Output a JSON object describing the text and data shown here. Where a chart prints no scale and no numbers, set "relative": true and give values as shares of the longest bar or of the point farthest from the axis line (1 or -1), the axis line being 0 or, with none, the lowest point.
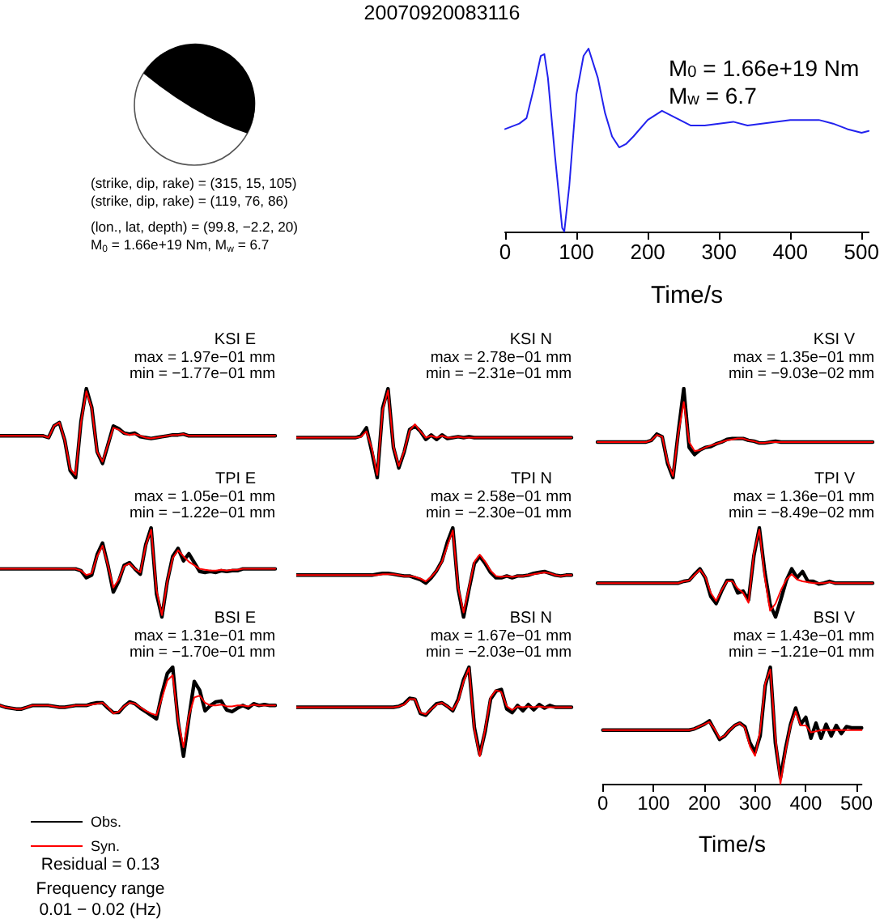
{
  "chart_data": [
    {
      "type": "other",
      "title": "20070920083116",
      "annotations": [
        "(strike, dip, rake) = (315, 15, 105)",
        "(strike, dip, rake) = (119, 76, 86)",
        "(lon., lat, depth) = (99.8, −2.2, 20)",
        "M$_{0}$ = 1.66e+19 Nm, M$_{w}$ = 6.7",
        "Residual = 0.13",
        "Frequency range",
        "0.01 − 0.02 (Hz)"
      ]
    },
    {
      "type": "line",
      "relative": true,
      "marker": "none",
      "xlabel": "Time/s",
      "xlim": [
        0,
        510
      ],
      "xticks": [
        0,
        100,
        200,
        300,
        400,
        500
      ],
      "annotations": [
        "M$_{0}$ = 1.66e+19 Nm",
        "M$_{w}$ = 6.7"
      ],
      "x": [
        0,
        20,
        30,
        40,
        50,
        55,
        60,
        70,
        80,
        83,
        90,
        100,
        110,
        117,
        130,
        140,
        150,
        160,
        170,
        180,
        200,
        220,
        240,
        260,
        280,
        300,
        320,
        340,
        360,
        380,
        400,
        440,
        460,
        480,
        500,
        510
      ],
      "series": [
        {
          "color": "#2222ee",
          "values": [
            0.56,
            0.59,
            0.62,
            0.78,
            0.96,
            0.97,
            0.84,
            0.41,
            0.02,
            0,
            0.25,
            0.75,
            0.96,
            1,
            0.84,
            0.65,
            0.52,
            0.46,
            0.48,
            0.52,
            0.61,
            0.66,
            0.62,
            0.58,
            0.58,
            0.59,
            0.6,
            0.58,
            0.59,
            0.6,
            0.61,
            0.61,
            0.59,
            0.56,
            0.54,
            0.55
          ]
        }
      ]
    },
    {
      "type": "line",
      "relative": true,
      "marker": "none",
      "title": "KSI E",
      "annotations": [
        "max = 1.97e−01 mm",
        "min = −1.77e−01 mm"
      ],
      "categories": [
        null,
        null,
        null,
        null,
        null,
        null,
        null,
        null,
        null,
        null,
        null,
        null,
        null,
        null,
        null,
        null,
        null,
        null,
        null,
        null,
        null,
        null,
        null,
        null,
        null,
        null,
        null,
        null,
        null,
        null,
        null,
        null,
        null,
        null,
        null,
        null,
        null,
        null,
        null,
        null,
        null,
        null,
        null,
        null,
        null,
        null,
        null,
        null,
        null,
        null,
        null,
        null
      ],
      "series": [
        {
          "color": "#000000",
          "values": [
            0.47,
            0.47,
            0.47,
            0.47,
            0.47,
            0.47,
            0.47,
            0.47,
            0.47,
            0.45,
            0.58,
            0.62,
            0.42,
            0.08,
            0,
            0.63,
            1,
            0.79,
            0.29,
            0.16,
            0.37,
            0.58,
            0.55,
            0.5,
            0.49,
            0.5,
            0.46,
            0.45,
            0.44,
            0.45,
            0.46,
            0.47,
            0.48,
            0.48,
            0.49,
            0.47,
            0.47,
            0.47,
            0.47,
            0.47,
            0.47,
            0.47,
            0.47,
            0.47,
            0.47,
            0.47,
            0.47,
            0.47,
            0.47,
            0.47,
            0.47,
            0.47
          ]
        },
        {
          "color": "#ff0000",
          "values": [
            0.47,
            0.47,
            0.47,
            0.47,
            0.47,
            0.47,
            0.47,
            0.47,
            0.47,
            0.45,
            0.58,
            0.62,
            0.42,
            0.1,
            0.03,
            0.62,
            0.97,
            0.78,
            0.29,
            0.18,
            0.37,
            0.56,
            0.54,
            0.5,
            0.48,
            0.49,
            0.47,
            0.45,
            0.44,
            0.45,
            0.46,
            0.47,
            0.48,
            0.48,
            0.49,
            0.47,
            0.47,
            0.47,
            0.47,
            0.47,
            0.47,
            0.47,
            0.47,
            0.47,
            0.47,
            0.47,
            0.47,
            0.47,
            0.47,
            0.47,
            0.47,
            0.47
          ]
        }
      ]
    },
    {
      "type": "line",
      "relative": true,
      "marker": "none",
      "title": "KSI N",
      "annotations": [
        "max = 2.78e−01 mm",
        "min = −2.31e−01 mm"
      ],
      "categories": [
        null,
        null,
        null,
        null,
        null,
        null,
        null,
        null,
        null,
        null,
        null,
        null,
        null,
        null,
        null,
        null,
        null,
        null,
        null,
        null,
        null,
        null,
        null,
        null,
        null,
        null,
        null,
        null,
        null,
        null,
        null,
        null,
        null,
        null,
        null,
        null,
        null,
        null,
        null,
        null,
        null,
        null,
        null,
        null,
        null,
        null,
        null,
        null,
        null,
        null,
        null,
        null
      ],
      "series": [
        {
          "color": "#000000",
          "values": [
            0.45,
            0.45,
            0.45,
            0.45,
            0.45,
            0.45,
            0.45,
            0.45,
            0.45,
            0.45,
            0.45,
            0.45,
            0.47,
            0.56,
            0.29,
            0,
            0.78,
            1,
            0.34,
            0.11,
            0.29,
            0.54,
            0.58,
            0.52,
            0.43,
            0.48,
            0.43,
            0.48,
            0.44,
            0.45,
            0.46,
            0.45,
            0.46,
            0.45,
            0.45,
            0.45,
            0.45,
            0.45,
            0.45,
            0.45,
            0.45,
            0.45,
            0.45,
            0.45,
            0.45,
            0.45,
            0.45,
            0.45,
            0.45,
            0.45,
            0.45,
            0.45
          ]
        },
        {
          "color": "#ff0000",
          "values": [
            0.45,
            0.45,
            0.45,
            0.45,
            0.45,
            0.45,
            0.45,
            0.45,
            0.45,
            0.45,
            0.45,
            0.45,
            0.46,
            0.52,
            0.33,
            0.03,
            0.76,
            0.98,
            0.35,
            0.13,
            0.3,
            0.53,
            0.6,
            0.52,
            0.45,
            0.47,
            0.45,
            0.47,
            0.45,
            0.45,
            0.46,
            0.45,
            0.45,
            0.45,
            0.45,
            0.45,
            0.45,
            0.45,
            0.45,
            0.45,
            0.45,
            0.45,
            0.45,
            0.45,
            0.45,
            0.45,
            0.45,
            0.45,
            0.45,
            0.45,
            0.45,
            0.45
          ]
        }
      ]
    },
    {
      "type": "line",
      "relative": true,
      "marker": "none",
      "title": "KSI V",
      "annotations": [
        "max = 1.35e−01 mm",
        "min = −9.03e−02 mm"
      ],
      "categories": [
        null,
        null,
        null,
        null,
        null,
        null,
        null,
        null,
        null,
        null,
        null,
        null,
        null,
        null,
        null,
        null,
        null,
        null,
        null,
        null,
        null,
        null,
        null,
        null,
        null,
        null,
        null,
        null,
        null,
        null,
        null,
        null,
        null,
        null,
        null,
        null,
        null,
        null,
        null,
        null,
        null,
        null,
        null,
        null,
        null,
        null,
        null,
        null,
        null,
        null,
        null,
        null
      ],
      "series": [
        {
          "color": "#000000",
          "values": [
            0.4,
            0.4,
            0.4,
            0.4,
            0.4,
            0.4,
            0.4,
            0.4,
            0.4,
            0.4,
            0.42,
            0.49,
            0.46,
            0.16,
            0,
            0.52,
            1,
            0.34,
            0.26,
            0.31,
            0.34,
            0.35,
            0.38,
            0.4,
            0.43,
            0.44,
            0.44,
            0.44,
            0.42,
            0.41,
            0.39,
            0.39,
            0.4,
            0.41,
            0.4,
            0.4,
            0.4,
            0.4,
            0.4,
            0.4,
            0.4,
            0.4,
            0.4,
            0.4,
            0.4,
            0.4,
            0.4,
            0.4,
            0.4,
            0.4,
            0.4,
            0.4
          ]
        },
        {
          "color": "#ff0000",
          "values": [
            0.4,
            0.4,
            0.4,
            0.4,
            0.4,
            0.4,
            0.4,
            0.4,
            0.4,
            0.4,
            0.42,
            0.48,
            0.46,
            0.18,
            0.02,
            0.5,
            0.85,
            0.4,
            0.3,
            0.31,
            0.34,
            0.36,
            0.38,
            0.4,
            0.42,
            0.43,
            0.44,
            0.44,
            0.42,
            0.41,
            0.39,
            0.39,
            0.4,
            0.4,
            0.4,
            0.4,
            0.4,
            0.4,
            0.4,
            0.4,
            0.4,
            0.4,
            0.4,
            0.4,
            0.4,
            0.4,
            0.4,
            0.4,
            0.4,
            0.4,
            0.4,
            0.4
          ]
        }
      ]
    },
    {
      "type": "line",
      "relative": true,
      "marker": "none",
      "title": "TPI E",
      "annotations": [
        "max = 1.05e−01 mm",
        "min = −1.22e−01 mm"
      ],
      "categories": [
        null,
        null,
        null,
        null,
        null,
        null,
        null,
        null,
        null,
        null,
        null,
        null,
        null,
        null,
        null,
        null,
        null,
        null,
        null,
        null,
        null,
        null,
        null,
        null,
        null,
        null,
        null,
        null,
        null,
        null,
        null,
        null,
        null,
        null,
        null,
        null,
        null,
        null,
        null,
        null,
        null,
        null,
        null,
        null,
        null,
        null,
        null,
        null,
        null,
        null,
        null,
        null
      ],
      "series": [
        {
          "color": "#000000",
          "values": [
            0.54,
            0.54,
            0.54,
            0.54,
            0.54,
            0.54,
            0.54,
            0.54,
            0.54,
            0.54,
            0.54,
            0.54,
            0.54,
            0.54,
            0.54,
            0.52,
            0.44,
            0.47,
            0.7,
            0.83,
            0.58,
            0.28,
            0.4,
            0.58,
            0.61,
            0.54,
            0.48,
            0.81,
            1,
            0.26,
            0,
            0.4,
            0.68,
            0.77,
            0.63,
            0.71,
            0.61,
            0.51,
            0.5,
            0.51,
            0.5,
            0.52,
            0.51,
            0.52,
            0.52,
            0.54,
            0.54,
            0.54,
            0.54,
            0.54,
            0.54,
            0.54
          ]
        },
        {
          "color": "#ff0000",
          "values": [
            0.54,
            0.54,
            0.54,
            0.54,
            0.54,
            0.54,
            0.54,
            0.54,
            0.54,
            0.54,
            0.54,
            0.54,
            0.54,
            0.54,
            0.54,
            0.52,
            0.47,
            0.49,
            0.68,
            0.8,
            0.58,
            0.33,
            0.42,
            0.57,
            0.6,
            0.54,
            0.5,
            0.8,
            0.98,
            0.3,
            0.02,
            0.4,
            0.66,
            0.75,
            0.68,
            0.62,
            0.58,
            0.54,
            0.53,
            0.52,
            0.52,
            0.53,
            0.52,
            0.53,
            0.53,
            0.54,
            0.54,
            0.54,
            0.54,
            0.54,
            0.54,
            0.54
          ]
        }
      ]
    },
    {
      "type": "line",
      "relative": true,
      "marker": "none",
      "title": "TPI N",
      "annotations": [
        "max = 2.58e−01 mm",
        "min = −2.30e−01 mm"
      ],
      "categories": [
        null,
        null,
        null,
        null,
        null,
        null,
        null,
        null,
        null,
        null,
        null,
        null,
        null,
        null,
        null,
        null,
        null,
        null,
        null,
        null,
        null,
        null,
        null,
        null,
        null,
        null,
        null,
        null,
        null,
        null,
        null,
        null,
        null,
        null,
        null,
        null,
        null,
        null,
        null,
        null,
        null,
        null,
        null,
        null,
        null,
        null,
        null,
        null,
        null,
        null,
        null,
        null
      ],
      "series": [
        {
          "color": "#000000",
          "values": [
            0.47,
            0.47,
            0.47,
            0.47,
            0.47,
            0.47,
            0.47,
            0.47,
            0.47,
            0.47,
            0.47,
            0.47,
            0.47,
            0.47,
            0.47,
            0.48,
            0.49,
            0.49,
            0.48,
            0.47,
            0.46,
            0.46,
            0.44,
            0.42,
            0.38,
            0.44,
            0.52,
            0.63,
            0.84,
            1,
            0.31,
            0,
            0.31,
            0.6,
            0.68,
            0.6,
            0.5,
            0.44,
            0.44,
            0.46,
            0.44,
            0.46,
            0.46,
            0.47,
            0.49,
            0.5,
            0.51,
            0.49,
            0.47,
            0.46,
            0.47,
            0.47
          ]
        },
        {
          "color": "#ff0000",
          "values": [
            0.47,
            0.47,
            0.47,
            0.47,
            0.47,
            0.47,
            0.47,
            0.47,
            0.47,
            0.47,
            0.47,
            0.47,
            0.47,
            0.47,
            0.47,
            0.47,
            0.48,
            0.48,
            0.48,
            0.47,
            0.46,
            0.46,
            0.45,
            0.43,
            0.4,
            0.45,
            0.52,
            0.62,
            0.8,
            0.97,
            0.33,
            0.05,
            0.33,
            0.62,
            0.7,
            0.62,
            0.52,
            0.46,
            0.45,
            0.46,
            0.45,
            0.46,
            0.46,
            0.47,
            0.48,
            0.49,
            0.5,
            0.49,
            0.47,
            0.46,
            0.47,
            0.47
          ]
        }
      ]
    },
    {
      "type": "line",
      "relative": true,
      "marker": "none",
      "title": "TPI V",
      "annotations": [
        "max = 1.36e−01 mm",
        "min = −8.49e−02 mm"
      ],
      "categories": [
        null,
        null,
        null,
        null,
        null,
        null,
        null,
        null,
        null,
        null,
        null,
        null,
        null,
        null,
        null,
        null,
        null,
        null,
        null,
        null,
        null,
        null,
        null,
        null,
        null,
        null,
        null,
        null,
        null,
        null,
        null,
        null,
        null,
        null,
        null,
        null,
        null,
        null,
        null,
        null,
        null,
        null,
        null,
        null,
        null,
        null,
        null,
        null,
        null,
        null,
        null,
        null
      ],
      "series": [
        {
          "color": "#000000",
          "values": [
            0.38,
            0.38,
            0.38,
            0.38,
            0.38,
            0.38,
            0.38,
            0.38,
            0.38,
            0.38,
            0.38,
            0.38,
            0.38,
            0.38,
            0.38,
            0.38,
            0.4,
            0.41,
            0.48,
            0.54,
            0.44,
            0.23,
            0.15,
            0.29,
            0.41,
            0.41,
            0.27,
            0.29,
            0.19,
            0.69,
            1,
            0.51,
            0.14,
            0,
            0.2,
            0.41,
            0.54,
            0.44,
            0.51,
            0.4,
            0.4,
            0.37,
            0.38,
            0.4,
            0.38,
            0.38,
            0.38,
            0.38,
            0.38,
            0.38,
            0.38,
            0.38
          ]
        },
        {
          "color": "#ff0000",
          "values": [
            0.38,
            0.38,
            0.38,
            0.38,
            0.38,
            0.38,
            0.38,
            0.38,
            0.38,
            0.38,
            0.38,
            0.38,
            0.38,
            0.38,
            0.38,
            0.38,
            0.4,
            0.41,
            0.47,
            0.53,
            0.45,
            0.27,
            0.18,
            0.3,
            0.4,
            0.4,
            0.32,
            0.27,
            0.16,
            0.72,
            0.98,
            0.45,
            0.07,
            0.15,
            0.3,
            0.42,
            0.48,
            0.42,
            0.4,
            0.39,
            0.38,
            0.38,
            0.38,
            0.39,
            0.38,
            0.38,
            0.38,
            0.38,
            0.38,
            0.38,
            0.38,
            0.38
          ]
        }
      ]
    },
    {
      "type": "line",
      "relative": true,
      "marker": "none",
      "title": "BSI E",
      "annotations": [
        "max = 1.31e−01 mm",
        "min = −1.70e−01 mm"
      ],
      "legend": "bottom left",
      "categories": [
        null,
        null,
        null,
        null,
        null,
        null,
        null,
        null,
        null,
        null,
        null,
        null,
        null,
        null,
        null,
        null,
        null,
        null,
        null,
        null,
        null,
        null,
        null,
        null,
        null,
        null,
        null,
        null,
        null,
        null,
        null,
        null,
        null,
        null,
        null,
        null,
        null,
        null,
        null,
        null,
        null,
        null,
        null,
        null,
        null,
        null,
        null,
        null,
        null,
        null,
        null,
        null
      ],
      "series": [
        {
          "name": "Obs.",
          "color": "#000000",
          "values": [
            0.57,
            0.55,
            0.54,
            0.53,
            0.53,
            0.55,
            0.57,
            0.57,
            0.57,
            0.57,
            0.56,
            0.55,
            0.55,
            0.56,
            0.57,
            0.57,
            0.57,
            0.59,
            0.6,
            0.6,
            0.54,
            0.49,
            0.49,
            0.56,
            0.61,
            0.59,
            0.54,
            0.5,
            0.46,
            0.42,
            0.7,
            0.93,
            1,
            0.39,
            0,
            0.43,
            0.84,
            0.74,
            0.51,
            0.57,
            0.61,
            0.62,
            0.52,
            0.5,
            0.54,
            0.57,
            0.54,
            0.59,
            0.57,
            0.58,
            0.57,
            0.57
          ]
        },
        {
          "name": "Syn.",
          "color": "#ff0000",
          "values": [
            0.57,
            0.55,
            0.54,
            0.53,
            0.53,
            0.55,
            0.57,
            0.57,
            0.57,
            0.57,
            0.56,
            0.55,
            0.55,
            0.56,
            0.57,
            0.57,
            0.57,
            0.58,
            0.59,
            0.6,
            0.55,
            0.48,
            0.5,
            0.56,
            0.6,
            0.59,
            0.55,
            0.51,
            0.48,
            0.46,
            0.65,
            0.85,
            0.91,
            0.4,
            0.1,
            0.45,
            0.66,
            0.68,
            0.6,
            0.57,
            0.57,
            0.58,
            0.56,
            0.56,
            0.57,
            0.57,
            0.56,
            0.58,
            0.57,
            0.57,
            0.57,
            0.57
          ]
        }
      ]
    },
    {
      "type": "line",
      "relative": true,
      "marker": "none",
      "title": "BSI N",
      "annotations": [
        "max = 1.67e−01 mm",
        "min = −2.03e−01 mm"
      ],
      "categories": [
        null,
        null,
        null,
        null,
        null,
        null,
        null,
        null,
        null,
        null,
        null,
        null,
        null,
        null,
        null,
        null,
        null,
        null,
        null,
        null,
        null,
        null,
        null,
        null,
        null,
        null,
        null,
        null,
        null,
        null,
        null,
        null,
        null,
        null,
        null,
        null,
        null,
        null,
        null,
        null,
        null,
        null,
        null,
        null,
        null,
        null,
        null,
        null,
        null,
        null,
        null,
        null
      ],
      "series": [
        {
          "color": "#000000",
          "values": [
            0.55,
            0.55,
            0.55,
            0.55,
            0.55,
            0.55,
            0.55,
            0.55,
            0.55,
            0.55,
            0.55,
            0.55,
            0.55,
            0.55,
            0.55,
            0.55,
            0.55,
            0.55,
            0.55,
            0.56,
            0.59,
            0.65,
            0.64,
            0.48,
            0.46,
            0.53,
            0.59,
            0.6,
            0.56,
            0.51,
            0.64,
            0.86,
            1,
            0.32,
            0.02,
            0.28,
            0.64,
            0.73,
            0.75,
            0.53,
            0.49,
            0.57,
            0.51,
            0.58,
            0.52,
            0.58,
            0.54,
            0.57,
            0.55,
            0.55,
            0.55,
            0.55
          ]
        },
        {
          "color": "#ff0000",
          "values": [
            0.55,
            0.55,
            0.55,
            0.55,
            0.55,
            0.55,
            0.55,
            0.55,
            0.55,
            0.55,
            0.55,
            0.55,
            0.55,
            0.55,
            0.55,
            0.55,
            0.55,
            0.55,
            0.55,
            0.56,
            0.58,
            0.64,
            0.64,
            0.49,
            0.47,
            0.53,
            0.58,
            0.6,
            0.56,
            0.52,
            0.62,
            0.84,
            0.99,
            0.3,
            0,
            0.3,
            0.66,
            0.74,
            0.72,
            0.56,
            0.52,
            0.56,
            0.55,
            0.56,
            0.55,
            0.56,
            0.55,
            0.55,
            0.55,
            0.55,
            0.55,
            0.55
          ]
        }
      ]
    },
    {
      "type": "line",
      "relative": true,
      "marker": "none",
      "title": "BSI V",
      "annotations": [
        "max = 1.43e−01 mm",
        "min = −1.21e−01 mm"
      ],
      "tick_labels": "x",
      "xlabel": "Time/s",
      "xlim": [
        0,
        510
      ],
      "xticks": [
        0,
        100,
        200,
        300,
        400,
        500
      ],
      "x": [
        0,
        10,
        20,
        30,
        40,
        50,
        60,
        70,
        80,
        90,
        100,
        110,
        120,
        130,
        140,
        150,
        160,
        170,
        180,
        190,
        200,
        210,
        220,
        230,
        240,
        250,
        260,
        270,
        280,
        290,
        300,
        310,
        320,
        330,
        340,
        350,
        360,
        370,
        380,
        390,
        400,
        410,
        420,
        430,
        440,
        450,
        460,
        470,
        480,
        490,
        500,
        510
      ],
      "series": [
        {
          "color": "#000000",
          "values": [
            0.46,
            0.46,
            0.46,
            0.46,
            0.46,
            0.46,
            0.46,
            0.46,
            0.46,
            0.46,
            0.46,
            0.46,
            0.46,
            0.46,
            0.46,
            0.46,
            0.46,
            0.46,
            0.47,
            0.49,
            0.51,
            0.54,
            0.46,
            0.38,
            0.41,
            0.46,
            0.5,
            0.52,
            0.49,
            0.35,
            0.27,
            0.41,
            0.84,
            1,
            0.35,
            0.05,
            0.3,
            0.51,
            0.65,
            0.51,
            0.57,
            0.39,
            0.52,
            0.39,
            0.51,
            0.41,
            0.5,
            0.43,
            0.49,
            0.48,
            0.48,
            0.48
          ]
        },
        {
          "color": "#ff0000",
          "values": [
            0.46,
            0.46,
            0.46,
            0.46,
            0.46,
            0.46,
            0.46,
            0.46,
            0.46,
            0.46,
            0.46,
            0.46,
            0.46,
            0.46,
            0.46,
            0.46,
            0.46,
            0.46,
            0.47,
            0.49,
            0.51,
            0.53,
            0.47,
            0.39,
            0.41,
            0.46,
            0.5,
            0.52,
            0.48,
            0.32,
            0.24,
            0.45,
            0.86,
            0.98,
            0.4,
            0,
            0.28,
            0.5,
            0.62,
            0.5,
            0.5,
            0.44,
            0.45,
            0.46,
            0.46,
            0.46,
            0.46,
            0.46,
            0.46,
            0.46,
            0.46,
            0.46
          ]
        }
      ]
    }
  ]
}
